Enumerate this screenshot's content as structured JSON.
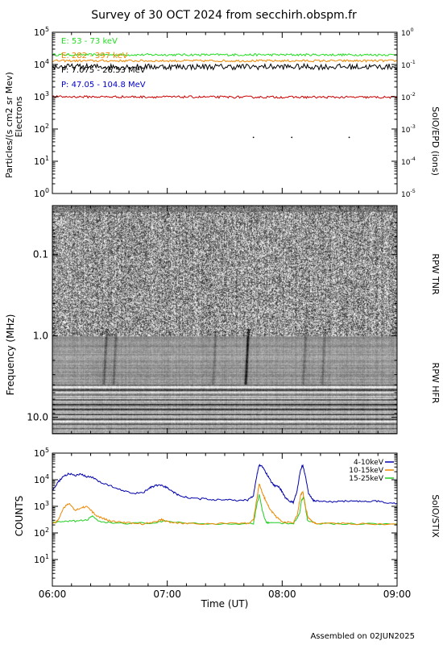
{
  "title": "Survey of 30 OCT 2024 from secchirh.obspm.fr",
  "footer": "Assembled on 02JUN2025",
  "colors": {
    "green": "#22dd22",
    "orange": "#ee8800",
    "black": "#000000",
    "blue": "#0000cc",
    "red": "#cc0000",
    "navy": "#0000aa"
  },
  "chart_data": [
    {
      "type": "line",
      "name": "epd-panel",
      "ylabel": "Particles/(s cm2 sr Mev)",
      "ylabel2": "Electrons",
      "right_label": "SolO/EPD (ions)",
      "yscale": "log",
      "ylim": [
        1,
        100000
      ],
      "ylim_right": [
        1e-05,
        1
      ],
      "ticks_left": [
        "10^0",
        "10^1",
        "10^2",
        "10^3",
        "10^4",
        "10^5"
      ],
      "ticks_right": [
        "10^-5",
        "10^-4",
        "10^-3",
        "10^-2",
        "10^-1",
        "10^0"
      ],
      "series": [
        {
          "name": "E: 53 - 73 keV",
          "color": "#22dd22",
          "approx_value": 20000
        },
        {
          "name": "E: 282 - 397 keV",
          "color": "#ee8800",
          "approx_value": 13000
        },
        {
          "name": "P: 7.075 - 26.53 MeV",
          "color": "#000000",
          "approx_value": 8500
        },
        {
          "name": "P: 47.05 - 104.8 MeV",
          "color": "#0000cc",
          "approx_value": null
        },
        {
          "name": "",
          "color": "#cc0000",
          "approx_value": 1000
        }
      ],
      "dots": [
        {
          "x": "07:45",
          "y": 55
        },
        {
          "x": "08:05",
          "y": 55
        },
        {
          "x": "08:35",
          "y": 55
        }
      ]
    },
    {
      "type": "heatmap",
      "name": "rpw-spectrogram",
      "ylabel": "Frequency (MHz)",
      "yscale": "log-inverted",
      "ylim": [
        0.025,
        16
      ],
      "tick_labels": [
        "0.1",
        "1.0",
        "10.0"
      ],
      "ticks": [
        0.1,
        1.0,
        10.0
      ],
      "receiver_labels": [
        "RPW TNR",
        "RPW HFR"
      ],
      "bursts": [
        {
          "time": "07:42",
          "strength": 1.0
        },
        {
          "time": "06:28",
          "strength": 0.5
        },
        {
          "time": "06:33",
          "strength": 0.4
        },
        {
          "time": "07:25",
          "strength": 0.3
        },
        {
          "time": "08:12",
          "strength": 0.35
        },
        {
          "time": "08:22",
          "strength": 0.3
        }
      ]
    },
    {
      "type": "line",
      "name": "stix-panel",
      "ylabel": "COUNTS",
      "right_label": "SolO/STIX",
      "xlabel": "Time (UT)",
      "yscale": "log",
      "ylim": [
        1,
        100000
      ],
      "ticks_left": [
        "10^1",
        "10^2",
        "10^3",
        "10^4",
        "10^5"
      ],
      "x_ticks": [
        "06:00",
        "07:00",
        "08:00",
        "09:00"
      ],
      "x_range_hours": [
        6,
        9
      ],
      "series": [
        {
          "name": "4-10keV",
          "color": "#0000aa",
          "x": [
            6.0,
            6.05,
            6.1,
            6.15,
            6.2,
            6.25,
            6.3,
            6.35,
            6.4,
            6.5,
            6.6,
            6.7,
            6.8,
            6.85,
            6.9,
            6.95,
            7.0,
            7.05,
            7.1,
            7.2,
            7.3,
            7.4,
            7.5,
            7.6,
            7.7,
            7.75,
            7.78,
            7.8,
            7.83,
            7.86,
            7.9,
            7.93,
            7.97,
            8.0,
            8.03,
            8.07,
            8.1,
            8.13,
            8.16,
            8.18,
            8.2,
            8.23,
            8.27,
            8.3,
            8.4,
            8.5,
            8.6,
            8.7,
            8.8,
            8.9,
            9.0
          ],
          "y": [
            4000,
            8000,
            14000,
            17000,
            14000,
            16000,
            13000,
            12000,
            9000,
            6000,
            4000,
            3000,
            3500,
            5000,
            6000,
            6000,
            5000,
            3500,
            2600,
            2000,
            1900,
            1800,
            1800,
            1700,
            1700,
            2500,
            15000,
            37000,
            30000,
            18000,
            9000,
            6000,
            5500,
            3500,
            2000,
            1500,
            1400,
            4000,
            25000,
            35000,
            15000,
            3000,
            1700,
            1600,
            1500,
            1500,
            1600,
            1500,
            1600,
            1400,
            1300
          ]
        },
        {
          "name": "10-15keV",
          "color": "#ee8800",
          "x": [
            6.0,
            6.05,
            6.1,
            6.15,
            6.2,
            6.25,
            6.3,
            6.35,
            6.4,
            6.45,
            6.5,
            6.6,
            6.7,
            6.8,
            6.9,
            6.95,
            7.0,
            7.1,
            7.2,
            7.4,
            7.6,
            7.7,
            7.75,
            7.78,
            7.8,
            7.83,
            7.86,
            7.9,
            7.95,
            8.0,
            8.1,
            8.13,
            8.16,
            8.18,
            8.2,
            8.23,
            8.27,
            8.3,
            8.5,
            8.7,
            9.0
          ],
          "y": [
            220,
            300,
            900,
            1300,
            700,
            900,
            1000,
            600,
            400,
            350,
            280,
            250,
            230,
            220,
            260,
            320,
            270,
            230,
            230,
            220,
            230,
            230,
            300,
            2000,
            7000,
            3000,
            1500,
            700,
            400,
            250,
            250,
            450,
            2500,
            3500,
            1000,
            350,
            250,
            230,
            230,
            220,
            210
          ]
        },
        {
          "name": "15-25keV",
          "color": "#22cc22",
          "x": [
            6.0,
            6.1,
            6.2,
            6.3,
            6.35,
            6.4,
            6.5,
            6.7,
            6.9,
            7.0,
            7.2,
            7.5,
            7.75,
            7.78,
            7.8,
            7.83,
            7.86,
            7.9,
            8.1,
            8.15,
            8.17,
            8.19,
            8.22,
            8.3,
            8.6,
            9.0
          ],
          "y": [
            240,
            260,
            280,
            300,
            450,
            260,
            240,
            230,
            240,
            280,
            230,
            220,
            230,
            1200,
            2800,
            600,
            260,
            230,
            230,
            500,
            1800,
            2200,
            300,
            230,
            220,
            220
          ]
        }
      ]
    }
  ]
}
